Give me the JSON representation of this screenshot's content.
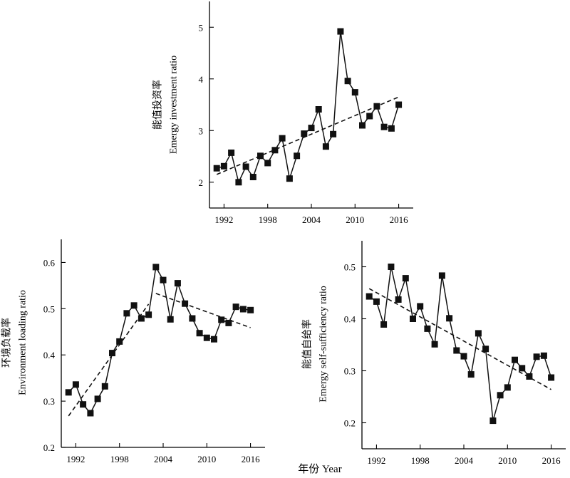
{
  "x_axis_label": "年份 Year",
  "chart_data": [
    {
      "type": "line",
      "title": "",
      "ylabel_cn": "能值投资率",
      "ylabel_en": "Emergy investment ratio",
      "xlabel": "",
      "xlim": [
        1990,
        2018
      ],
      "ylim": [
        1.5,
        5.5
      ],
      "xticks": [
        1992,
        1998,
        2004,
        2010,
        2016
      ],
      "yticks": [
        2,
        3,
        4,
        5
      ],
      "grid": false,
      "x": [
        1991,
        1992,
        1993,
        1994,
        1995,
        1996,
        1997,
        1998,
        1999,
        2000,
        2001,
        2002,
        2003,
        2004,
        2005,
        2006,
        2007,
        2008,
        2009,
        2010,
        2011,
        2012,
        2013,
        2014,
        2015,
        2016
      ],
      "values": [
        2.27,
        2.31,
        2.57,
        2.0,
        2.3,
        2.1,
        2.51,
        2.37,
        2.62,
        2.85,
        2.07,
        2.51,
        2.94,
        3.05,
        3.41,
        2.69,
        2.93,
        4.92,
        3.96,
        3.74,
        3.1,
        3.28,
        3.47,
        3.07,
        3.04,
        3.5
      ],
      "trend": [
        [
          1991,
          2.15
        ],
        [
          2016,
          3.65
        ]
      ]
    },
    {
      "type": "line",
      "title": "",
      "ylabel_cn": "环境负载率",
      "ylabel_en": "Environment loading ratio",
      "xlabel": "",
      "xlim": [
        1990,
        2018
      ],
      "ylim": [
        0.2,
        0.65
      ],
      "xticks": [
        1992,
        1998,
        2004,
        2010,
        2016
      ],
      "yticks": [
        0.2,
        0.3,
        0.4,
        0.5,
        0.6
      ],
      "grid": false,
      "x": [
        1991,
        1992,
        1993,
        1994,
        1995,
        1996,
        1997,
        1998,
        1999,
        2000,
        2001,
        2002,
        2003,
        2004,
        2005,
        2006,
        2007,
        2008,
        2009,
        2010,
        2011,
        2012,
        2013,
        2014,
        2015,
        2016
      ],
      "values": [
        0.319,
        0.336,
        0.293,
        0.274,
        0.305,
        0.332,
        0.404,
        0.429,
        0.49,
        0.507,
        0.479,
        0.487,
        0.59,
        0.562,
        0.477,
        0.555,
        0.511,
        0.479,
        0.447,
        0.437,
        0.434,
        0.476,
        0.469,
        0.504,
        0.499,
        0.497
      ],
      "trend": [
        [
          [
            1991,
            0.268
          ],
          [
            2002,
            0.51
          ]
        ],
        [
          [
            2003,
            0.533
          ],
          [
            2016,
            0.459
          ]
        ]
      ]
    },
    {
      "type": "line",
      "title": "",
      "ylabel_cn": "能值自给率",
      "ylabel_en": "Emergy self-sufficiency ratio",
      "xlabel": "",
      "xlim": [
        1990,
        2018
      ],
      "ylim": [
        0.15,
        0.55
      ],
      "xticks": [
        1992,
        1998,
        2004,
        2010,
        2016
      ],
      "yticks": [
        0.2,
        0.3,
        0.4,
        0.5
      ],
      "grid": false,
      "x": [
        1991,
        1992,
        1993,
        1994,
        1995,
        1996,
        1997,
        1998,
        1999,
        2000,
        2001,
        2002,
        2003,
        2004,
        2005,
        2006,
        2007,
        2008,
        2009,
        2010,
        2011,
        2012,
        2013,
        2014,
        2015,
        2016
      ],
      "values": [
        0.443,
        0.433,
        0.389,
        0.5,
        0.437,
        0.478,
        0.4,
        0.424,
        0.381,
        0.351,
        0.483,
        0.401,
        0.339,
        0.328,
        0.293,
        0.372,
        0.342,
        0.204,
        0.253,
        0.268,
        0.321,
        0.305,
        0.289,
        0.327,
        0.329,
        0.287
      ],
      "trend": [
        [
          1991,
          0.458
        ],
        [
          2016,
          0.264
        ]
      ]
    }
  ]
}
